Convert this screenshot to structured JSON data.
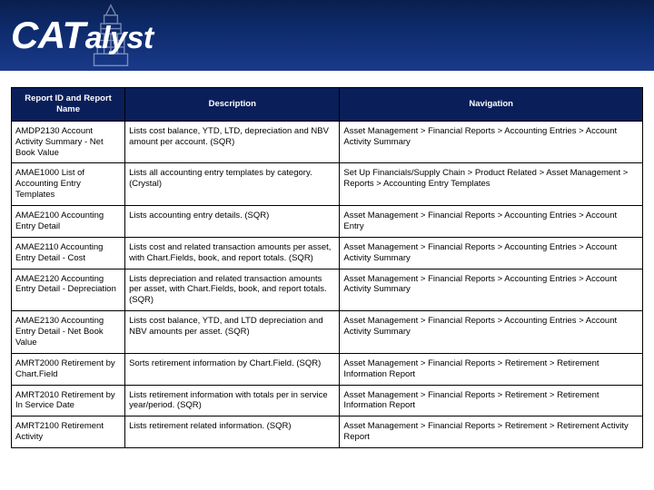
{
  "header": {
    "brand_html": "<span class='caps'>CAT</span>alyst"
  },
  "table": {
    "columns": [
      "Report ID and Report Name",
      "Description",
      "Navigation"
    ],
    "rows": [
      {
        "id": "AMDP2130 Account Activity Summary - Net Book Value",
        "desc": "Lists cost balance, YTD, LTD, depreciation and NBV amount per account. (SQR)",
        "nav": "Asset Management > Financial Reports > Accounting Entries > Account Activity Summary"
      },
      {
        "id": "AMAE1000 List of Accounting Entry Templates",
        "desc": "Lists all accounting entry templates by category. (Crystal)",
        "nav": "Set Up Financials/Supply Chain > Product Related > Asset Management > Reports > Accounting Entry Templates"
      },
      {
        "id": "AMAE2100 Accounting Entry Detail",
        "desc": "Lists accounting entry details. (SQR)",
        "nav": "Asset Management > Financial Reports > Accounting Entries > Account Entry"
      },
      {
        "id": "AMAE2110 Accounting Entry Detail - Cost",
        "desc": "Lists cost and related transaction amounts per asset, with Chart.Fields, book, and report totals. (SQR)",
        "nav": "Asset Management > Financial Reports > Accounting Entries > Account Activity Summary"
      },
      {
        "id": "AMAE2120 Accounting Entry Detail - Depreciation",
        "desc": "Lists depreciation and related transaction amounts per asset, with Chart.Fields, book, and report totals. (SQR)",
        "nav": "Asset Management > Financial Reports > Accounting Entries > Account Activity Summary"
      },
      {
        "id": "AMAE2130 Accounting Entry Detail - Net Book Value",
        "desc": "Lists cost balance, YTD, and LTD depreciation and NBV amounts per asset. (SQR)",
        "nav": "Asset Management > Financial Reports > Accounting Entries > Account Activity Summary"
      },
      {
        "id": "AMRT2000 Retirement by Chart.Field",
        "desc": "Sorts retirement information by Chart.Field. (SQR)",
        "nav": "Asset Management > Financial Reports > Retirement > Retirement Information Report"
      },
      {
        "id": "AMRT2010 Retirement by In Service Date",
        "desc": "Lists retirement information with totals per in service year/period. (SQR)",
        "nav": "Asset Management > Financial Reports > Retirement > Retirement Information Report"
      },
      {
        "id": "AMRT2100 Retirement Activity",
        "desc": "Lists retirement related information. (SQR)",
        "nav": "Asset Management > Financial Reports > Retirement > Retirement Activity Report"
      }
    ]
  },
  "style": {
    "header_bg_start": "#0a1f4d",
    "header_bg_end": "#1a3a8a",
    "th_bg": "#0a1f5a",
    "th_fg": "#ffffff",
    "cell_fg": "#000000",
    "border_color": "#000000",
    "font_size_table": 9.5,
    "col_widths_pct": [
      18,
      34,
      48
    ]
  }
}
